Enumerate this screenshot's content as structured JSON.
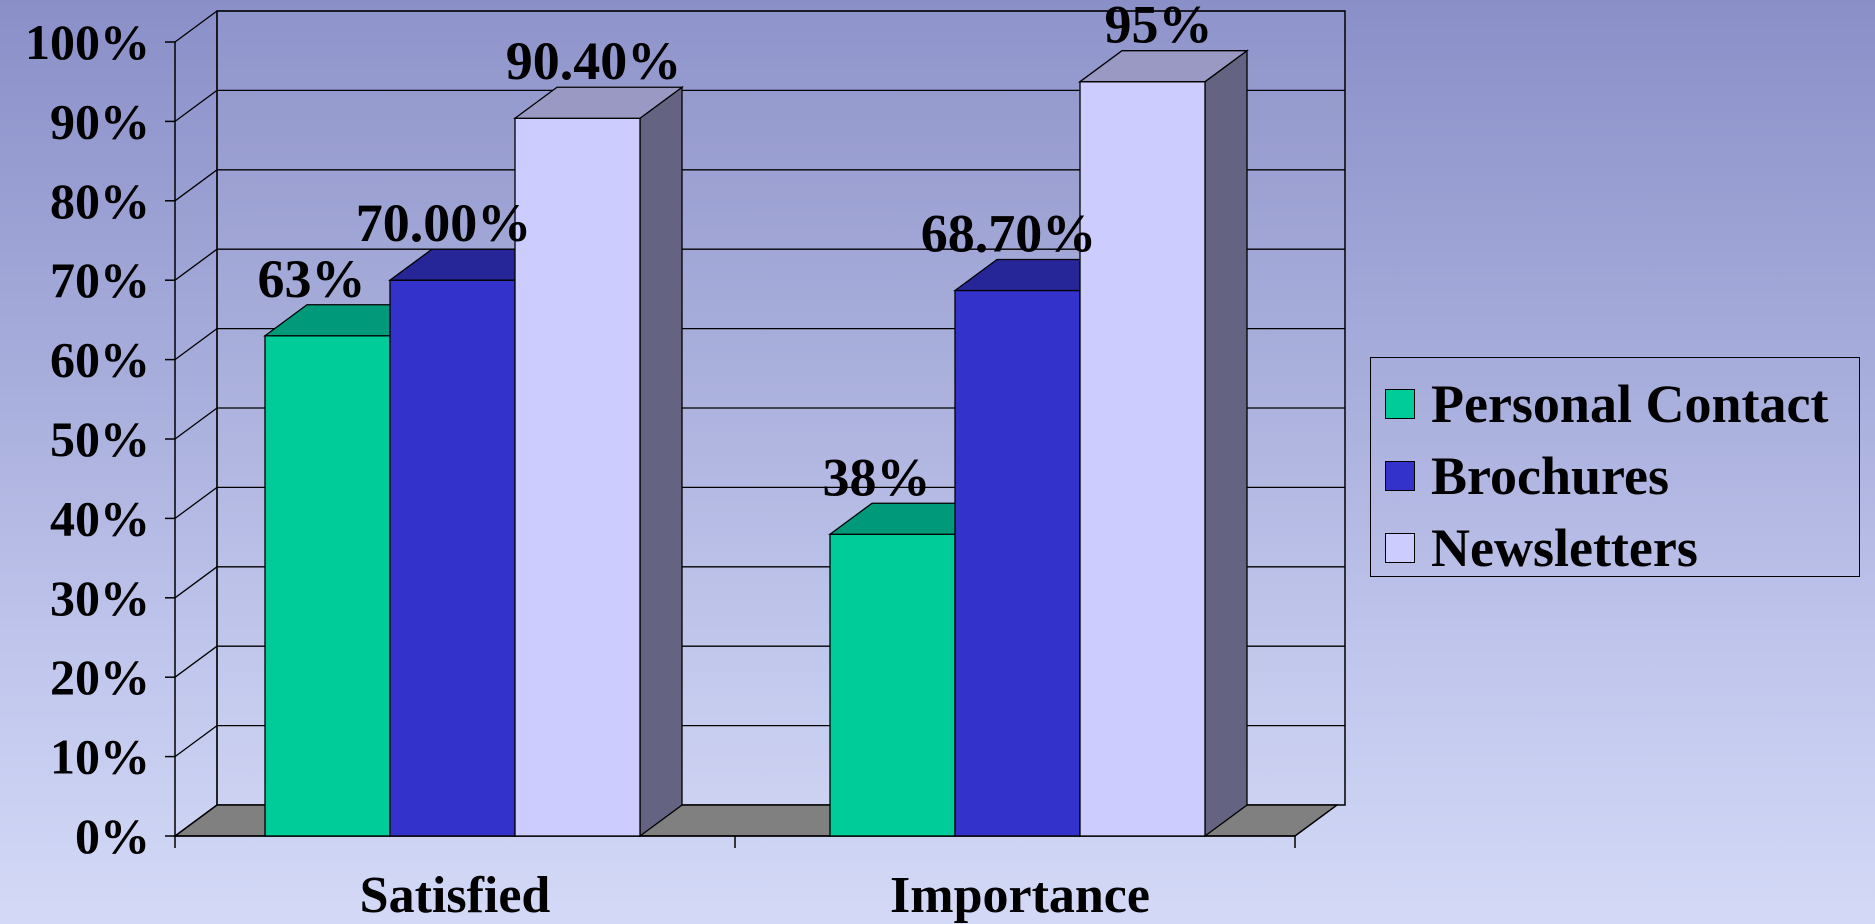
{
  "chart_data": {
    "type": "bar",
    "categories": [
      "Satisfied",
      "Importance"
    ],
    "series": [
      {
        "name": "Personal Contact",
        "values": [
          63,
          38
        ],
        "labels": [
          "63%",
          "38%"
        ],
        "color": "#00cc99",
        "top_color": "#00997a"
      },
      {
        "name": "Brochures",
        "values": [
          70,
          68.7
        ],
        "labels": [
          "70.00%",
          "68.70%"
        ],
        "color": "#3333cc",
        "top_color": "#262699"
      },
      {
        "name": "Newsletters",
        "values": [
          90.4,
          95
        ],
        "labels": [
          "90.40%",
          "95%"
        ],
        "color": "#ccccff",
        "top_color": "#9999c4"
      }
    ],
    "yticks": [
      "0%",
      "10%",
      "20%",
      "30%",
      "40%",
      "50%",
      "60%",
      "70%",
      "80%",
      "90%",
      "100%"
    ],
    "ylim": [
      0,
      100
    ],
    "grid": true,
    "legend": "right",
    "title": "",
    "xlabel": "",
    "ylabel": ""
  }
}
